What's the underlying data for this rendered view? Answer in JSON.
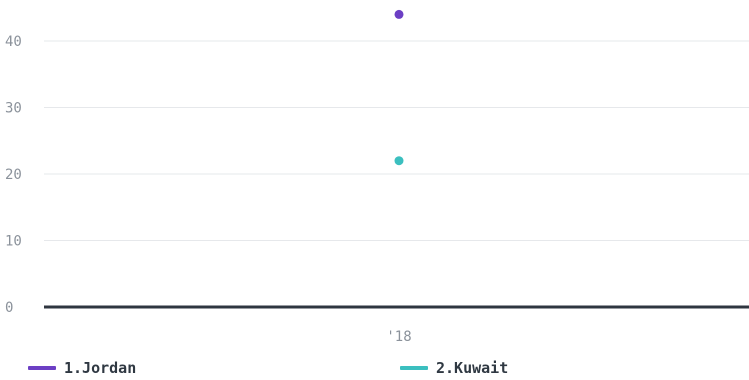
{
  "chart_data": {
    "type": "scatter",
    "x": [
      "'18"
    ],
    "series": [
      {
        "name": "1.Jordan",
        "values": [
          44
        ],
        "color": "#6c3fc4"
      },
      {
        "name": "2.Kuwait",
        "values": [
          22
        ],
        "color": "#3bbfbf"
      }
    ],
    "yticks": [
      "0",
      "10",
      "20",
      "30",
      "40"
    ],
    "ylim": [
      0,
      44
    ],
    "grid": true,
    "legend_position": "bottom"
  }
}
